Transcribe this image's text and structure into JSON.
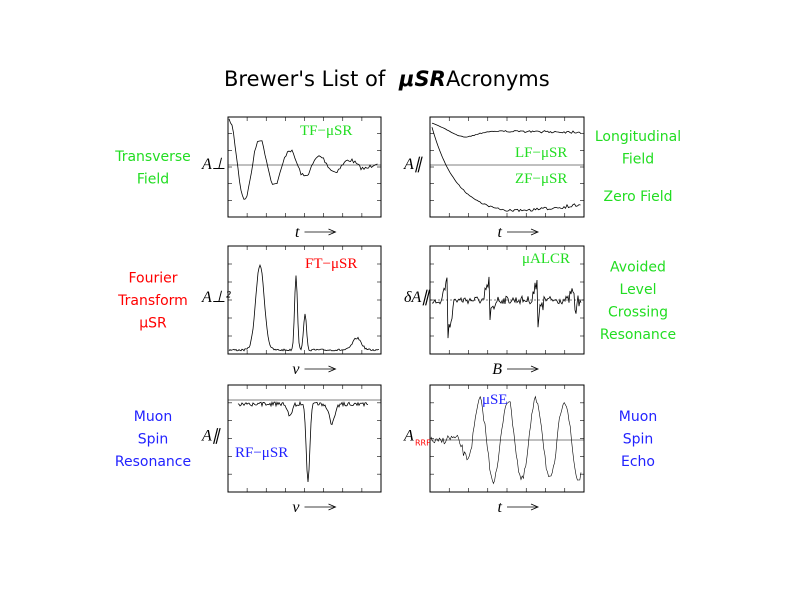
{
  "title": {
    "before": "Brewer's List of",
    "emphasis": "μSR",
    "after": "Acronyms"
  },
  "panels": [
    {
      "side": [
        "Transverse",
        "Field"
      ],
      "side_color": "#22dd22",
      "plot_labels": [
        "TF−μSR"
      ],
      "label_color": "#22dd22",
      "y_label": "A⊥",
      "x_label": "t"
    },
    {
      "side": [
        "Longitudinal",
        "Field"
      ],
      "side_extra": [
        "Zero Field"
      ],
      "side_color": "#22dd22",
      "plot_labels": [
        "LF−μSR",
        "ZF−μSR"
      ],
      "label_color": "#22dd22",
      "y_label": "A∥",
      "x_label": "t"
    },
    {
      "side": [
        "Fourier",
        "Transform",
        "μSR"
      ],
      "side_color": "#ff0000",
      "plot_labels": [
        "FT−μSR"
      ],
      "label_color": "#ff0000",
      "y_label": "A⊥²",
      "x_label": "ν"
    },
    {
      "side": [
        "Avoided",
        "Level",
        "Crossing",
        "Resonance"
      ],
      "side_color": "#22dd22",
      "plot_labels": [
        "μALCR"
      ],
      "label_color": "#22dd22",
      "y_label": "δA∥",
      "x_label": "B"
    },
    {
      "side": [
        "Muon",
        "Spin",
        "Resonance"
      ],
      "side_color": "#2222ff",
      "plot_labels": [
        "RF−μSR"
      ],
      "label_color": "#2222ff",
      "y_label": "A∥",
      "x_label": "ν"
    },
    {
      "side": [
        "Muon",
        "Spin",
        "Echo"
      ],
      "side_color": "#2222ff",
      "plot_labels": [
        "μSE"
      ],
      "label_color": "#2222ff",
      "y_label": "A",
      "y_sub": "RRF",
      "x_label": "t"
    }
  ]
}
